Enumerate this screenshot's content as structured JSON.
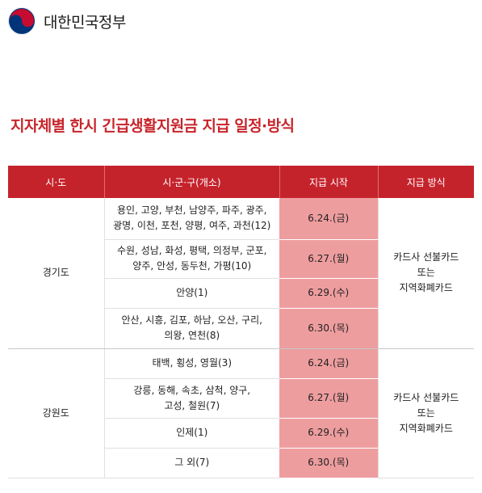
{
  "header": {
    "government_name": "대한민국정부",
    "logo_colors": [
      "#c60c30",
      "#003478"
    ]
  },
  "page": {
    "title": "지자체별 한시 긴급생활지원금 지급 일정·방식"
  },
  "table": {
    "headers": [
      "시·도",
      "시·군·구(개소)",
      "지급 시작",
      "지급 방식"
    ],
    "regions": [
      {
        "name": "경기도",
        "method_lines": [
          "카드사 선불카드",
          "또는",
          "지역화폐카드"
        ],
        "rows": [
          {
            "cities": [
              "용인, 고양, 부천, 남양주, 파주, 광주,",
              "광명, 이천, 포천, 양평, 여주, 과천(12)"
            ],
            "date": "6.24.(금)"
          },
          {
            "cities": [
              "수원, 성남, 화성, 평택, 의정부, 군포,",
              "양주, 안성, 동두천, 가평(10)"
            ],
            "date": "6.27.(월)"
          },
          {
            "cities": [
              "안양(1)"
            ],
            "date": "6.29.(수)"
          },
          {
            "cities": [
              "안산, 시흥, 김포, 하남, 오산, 구리,",
              "의왕, 연천(8)"
            ],
            "date": "6.30.(목)"
          }
        ]
      },
      {
        "name": "강원도",
        "method_lines": [
          "카드사 선불카드",
          "또는",
          "지역화폐카드"
        ],
        "rows": [
          {
            "cities": [
              "태백, 횡성, 영월(3)"
            ],
            "date": "6.24.(금)"
          },
          {
            "cities": [
              "강릉, 동해, 속초, 삼척, 양구,",
              "고성, 철원(7)"
            ],
            "date": "6.27.(월)"
          },
          {
            "cities": [
              "인제(1)"
            ],
            "date": "6.29.(수)"
          },
          {
            "cities": [
              "그 외(7)"
            ],
            "date": "6.30.(목)"
          }
        ]
      }
    ]
  }
}
